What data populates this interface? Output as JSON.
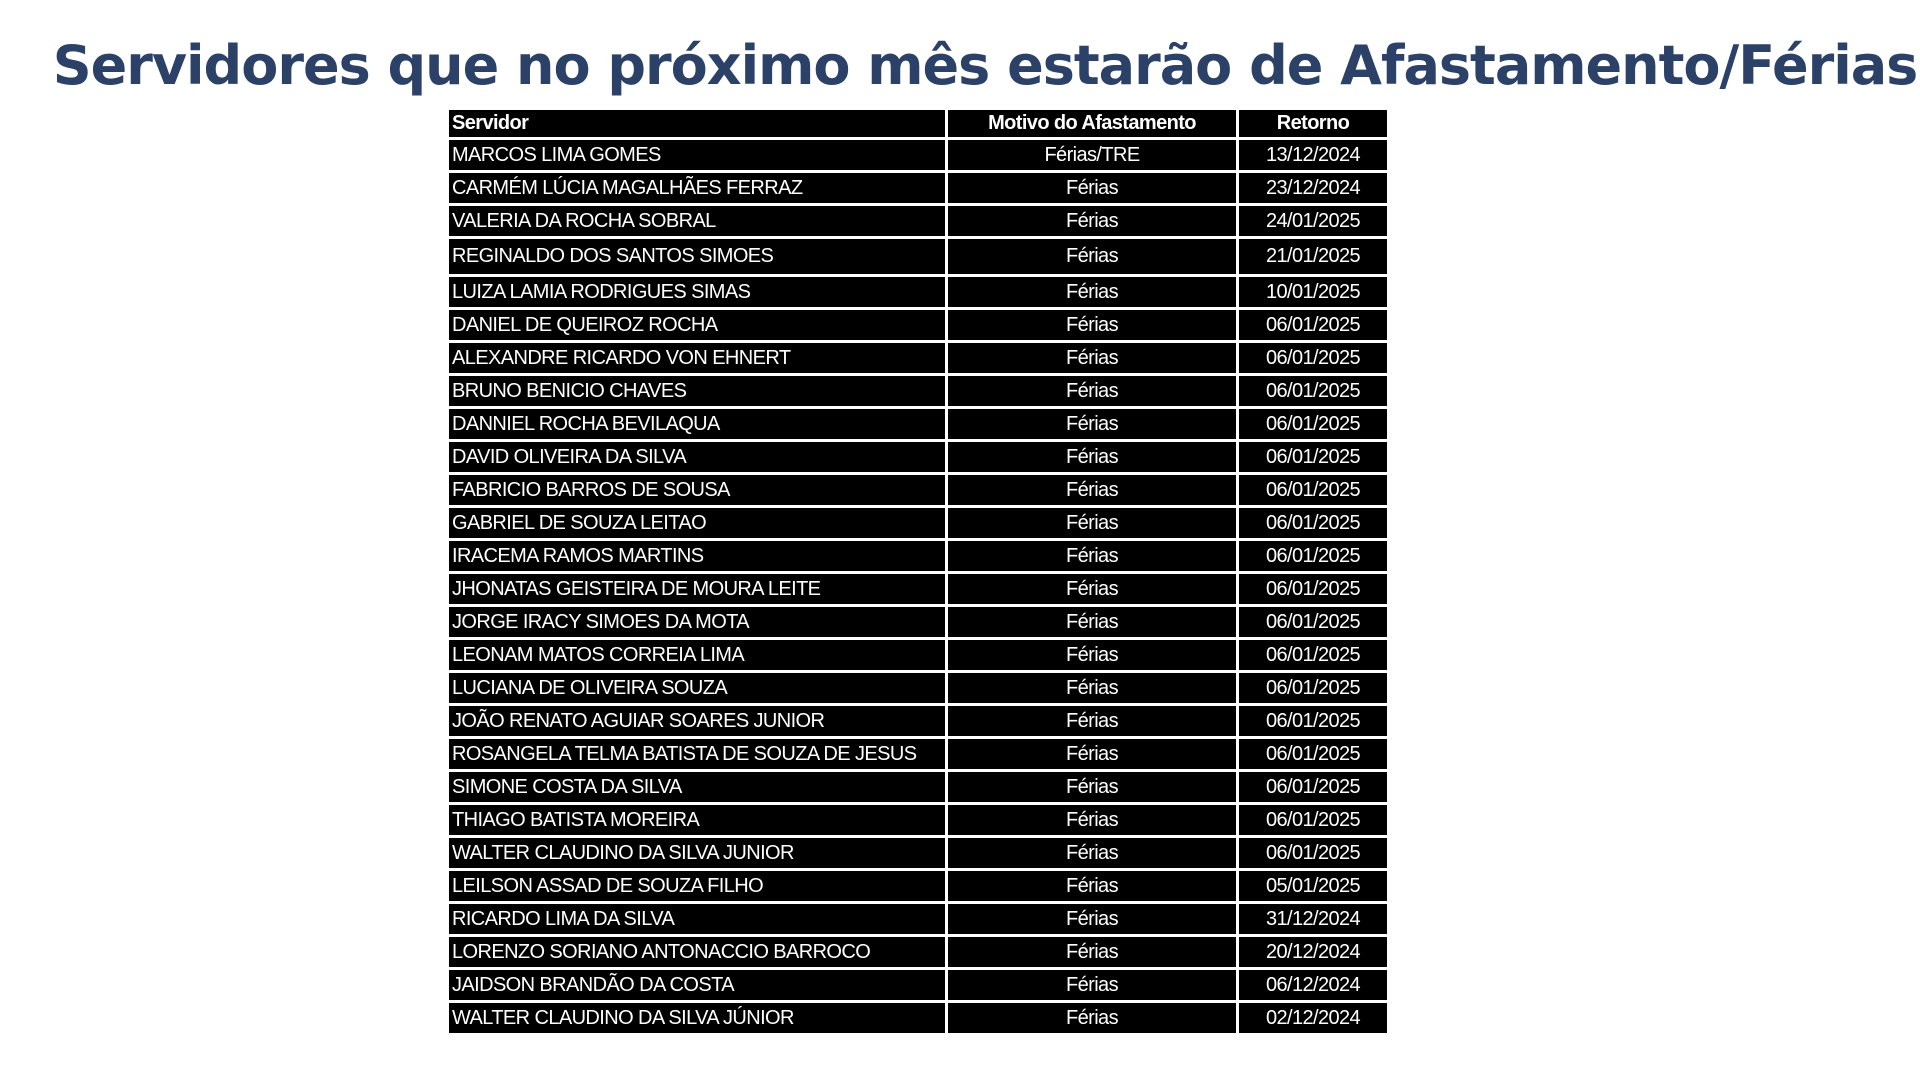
{
  "title": "Servidores que no próximo mês estarão de Afastamento/Férias",
  "table": {
    "headers": [
      "Servidor",
      "Motivo do Afastamento",
      "Retorno"
    ],
    "rows": [
      [
        "MARCOS LIMA GOMES",
        "Férias/TRE",
        "13/12/2024"
      ],
      [
        "CARMÉM LÚCIA MAGALHÃES FERRAZ",
        "Férias",
        "23/12/2024"
      ],
      [
        "VALERIA DA ROCHA SOBRAL",
        "Férias",
        "24/01/2025"
      ],
      [
        "REGINALDO DOS SANTOS SIMOES",
        "Férias",
        "21/01/2025"
      ],
      [
        "LUIZA LAMIA RODRIGUES SIMAS",
        "Férias",
        "10/01/2025"
      ],
      [
        "DANIEL DE QUEIROZ ROCHA",
        "Férias",
        "06/01/2025"
      ],
      [
        "ALEXANDRE RICARDO VON EHNERT",
        "Férias",
        "06/01/2025"
      ],
      [
        "BRUNO BENICIO CHAVES",
        "Férias",
        "06/01/2025"
      ],
      [
        "DANNIEL ROCHA BEVILAQUA",
        "Férias",
        "06/01/2025"
      ],
      [
        "DAVID OLIVEIRA DA SILVA",
        "Férias",
        "06/01/2025"
      ],
      [
        "FABRICIO BARROS DE SOUSA",
        "Férias",
        "06/01/2025"
      ],
      [
        "GABRIEL DE SOUZA LEITAO",
        "Férias",
        "06/01/2025"
      ],
      [
        "IRACEMA RAMOS MARTINS",
        "Férias",
        "06/01/2025"
      ],
      [
        "JHONATAS GEISTEIRA DE MOURA LEITE",
        "Férias",
        "06/01/2025"
      ],
      [
        "JORGE IRACY SIMOES DA MOTA",
        "Férias",
        "06/01/2025"
      ],
      [
        "LEONAM MATOS CORREIA LIMA",
        "Férias",
        "06/01/2025"
      ],
      [
        "LUCIANA DE OLIVEIRA SOUZA",
        "Férias",
        "06/01/2025"
      ],
      [
        "JOÃO RENATO AGUIAR SOARES JUNIOR",
        "Férias",
        "06/01/2025"
      ],
      [
        "ROSANGELA TELMA BATISTA DE SOUZA DE JESUS",
        "Férias",
        "06/01/2025"
      ],
      [
        "SIMONE COSTA DA SILVA",
        "Férias",
        "06/01/2025"
      ],
      [
        "THIAGO BATISTA MOREIRA",
        "Férias",
        "06/01/2025"
      ],
      [
        "WALTER CLAUDINO DA SILVA JUNIOR",
        "Férias",
        "06/01/2025"
      ],
      [
        "LEILSON ASSAD DE SOUZA FILHO",
        "Férias",
        "05/01/2025"
      ],
      [
        "RICARDO LIMA DA SILVA",
        "Férias",
        "31/12/2024"
      ],
      [
        "LORENZO SORIANO ANTONACCIO BARROCO",
        "Férias",
        "20/12/2024"
      ],
      [
        "JAIDSON BRANDÃO DA COSTA",
        "Férias",
        "06/12/2024"
      ],
      [
        "WALTER CLAUDINO DA SILVA JÚNIOR",
        "Férias",
        "02/12/2024"
      ]
    ]
  }
}
